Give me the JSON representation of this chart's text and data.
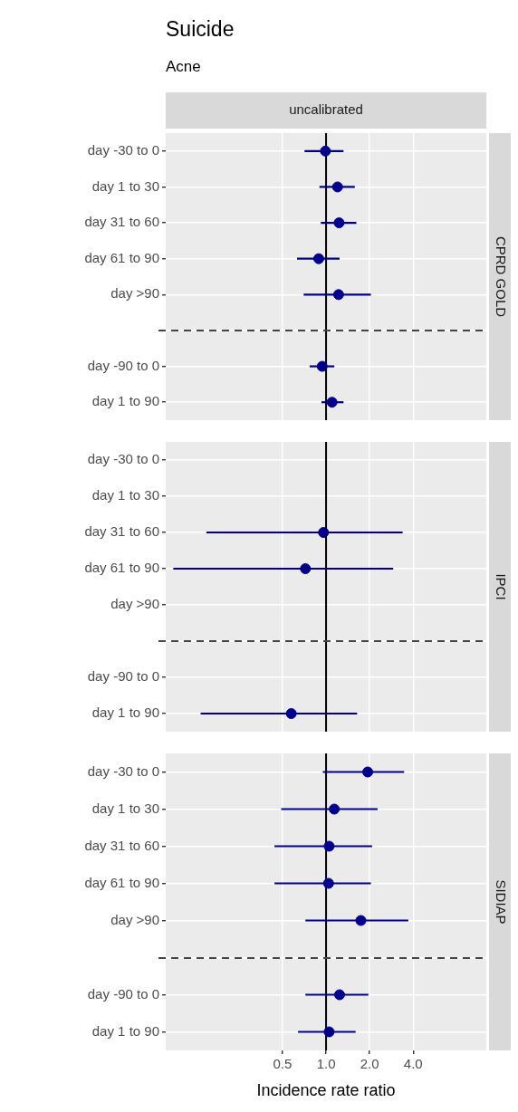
{
  "chart_data": [
    {
      "type": "scatter",
      "title": "Suicide",
      "subtitle": "Acne",
      "x2label": "uncalibrated",
      "y2label": "CPRD GOLD",
      "orientation": "horizontal",
      "log": "x",
      "grid": true,
      "marker": "circle",
      "color": "#00008b",
      "tick_labels": "y",
      "categories": [
        "day -30 to 0",
        "day 1 to 30",
        "day 31 to 60",
        "day 61 to 90",
        "day >90",
        null,
        "day -90 to 0",
        "day 1 to 90"
      ],
      "values": [
        0.99,
        1.2,
        1.23,
        0.89,
        1.22,
        null,
        0.94,
        1.1
      ],
      "errors": [
        [
          0.71,
          1.32
        ],
        [
          0.9,
          1.58
        ],
        [
          0.92,
          1.62
        ],
        [
          0.63,
          1.24
        ],
        [
          0.7,
          2.04
        ],
        null,
        [
          0.77,
          1.14
        ],
        [
          0.93,
          1.32
        ]
      ],
      "xlim": [
        0.078,
        12.8
      ],
      "xticks": [
        {
          "value": 0.5,
          "label": null
        },
        {
          "value": 1,
          "label": null
        },
        {
          "value": 2,
          "label": null
        },
        {
          "value": 4,
          "label": null
        }
      ],
      "ref_lines": [
        {
          "axis": "x",
          "value": 1,
          "color": "#000000"
        }
      ]
    },
    {
      "type": "scatter",
      "y2label": "IPCI",
      "orientation": "horizontal",
      "log": "x",
      "grid": true,
      "marker": "circle",
      "color": "#00008b",
      "tick_labels": "y",
      "categories": [
        "day -30 to 0",
        "day 1 to 30",
        "day 31 to 60",
        "day 61 to 90",
        "day >90",
        null,
        "day -90 to 0",
        "day 1 to 90"
      ],
      "values": [
        null,
        null,
        0.96,
        0.72,
        null,
        null,
        null,
        0.575
      ],
      "errors": [
        null,
        null,
        [
          0.149,
          3.38
        ],
        [
          0.088,
          2.91
        ],
        null,
        null,
        null,
        [
          0.136,
          1.64
        ]
      ],
      "xlim": [
        0.078,
        12.8
      ],
      "xticks": [
        {
          "value": 0.5,
          "label": null
        },
        {
          "value": 1,
          "label": null
        },
        {
          "value": 2,
          "label": null
        },
        {
          "value": 4,
          "label": null
        }
      ],
      "ref_lines": [
        {
          "axis": "x",
          "value": 1,
          "color": "#000000"
        }
      ]
    },
    {
      "type": "scatter",
      "y2label": "SIDIAP",
      "xlabel": "Incidence rate ratio",
      "orientation": "horizontal",
      "log": "x",
      "grid": true,
      "marker": "circle",
      "color": "#00008b",
      "categories": [
        "day -30 to 0",
        "day 1 to 30",
        "day 31 to 60",
        "day 61 to 90",
        "day >90",
        null,
        "day -90 to 0",
        "day 1 to 90"
      ],
      "values": [
        1.94,
        1.14,
        1.05,
        1.04,
        1.74,
        null,
        1.24,
        1.05
      ],
      "errors": [
        [
          0.95,
          3.46
        ],
        [
          0.49,
          2.27
        ],
        [
          0.44,
          2.08
        ],
        [
          0.44,
          2.04
        ],
        [
          0.72,
          3.7
        ],
        null,
        [
          0.72,
          1.96
        ],
        [
          0.64,
          1.6
        ]
      ],
      "xlim": [
        0.078,
        12.8
      ],
      "xticks": [
        0.5,
        {
          "value": 1,
          "label": "1.0"
        },
        {
          "value": 2,
          "label": "2.0"
        },
        {
          "value": 4,
          "label": "4.0"
        }
      ],
      "ref_lines": [
        {
          "axis": "x",
          "value": 1,
          "color": "#000000"
        }
      ]
    }
  ]
}
